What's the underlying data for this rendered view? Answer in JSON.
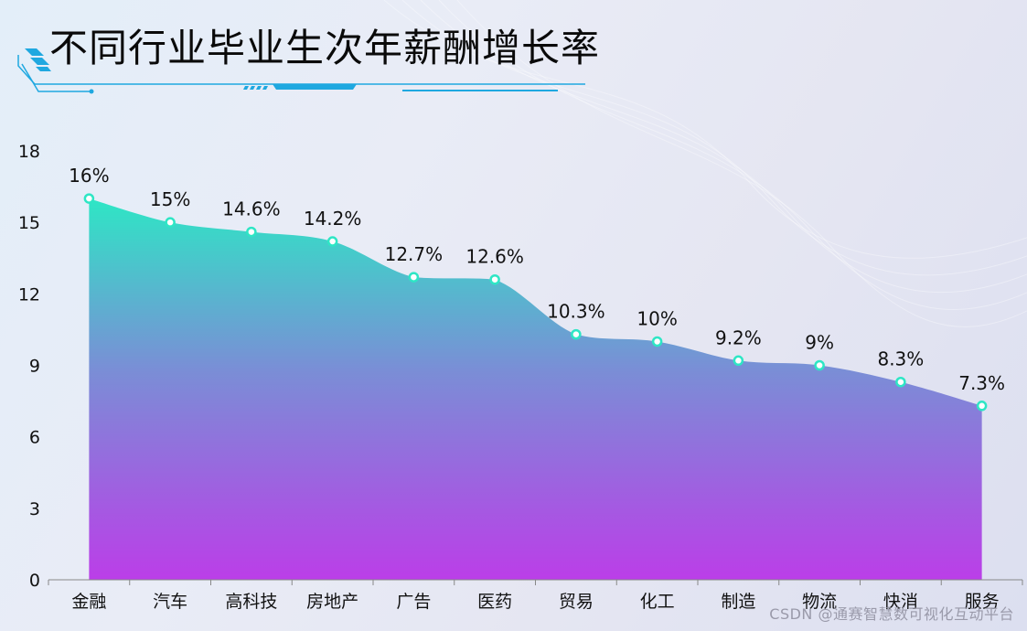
{
  "chart_data": {
    "type": "area",
    "title": "不同行业毕业生次年薪酬增长率",
    "xlabel": "",
    "ylabel": "",
    "categories": [
      "金融",
      "汽车",
      "高科技",
      "房地产",
      "广告",
      "医药",
      "贸易",
      "化工",
      "制造",
      "物流",
      "快消",
      "服务"
    ],
    "values": [
      16,
      15,
      14.6,
      14.2,
      12.7,
      12.6,
      10.3,
      10,
      9.2,
      9,
      8.3,
      7.3
    ],
    "data_labels": [
      "16%",
      "15%",
      "14.6%",
      "14.2%",
      "12.7%",
      "12.6%",
      "10.3%",
      "10%",
      "9.2%",
      "9%",
      "8.3%",
      "7.3%"
    ],
    "yticks": [
      "0",
      "3",
      "6",
      "9",
      "12",
      "15",
      "18"
    ],
    "ylim": [
      0,
      18
    ],
    "grid": false,
    "legend": "none",
    "colors": {
      "gradient_top": "#2ee6c5",
      "gradient_mid": "#7a8ed6",
      "gradient_bottom": "#bb3ee8",
      "marker_stroke": "#2ee6c5",
      "marker_fill": "#ffffff",
      "axis": "#888888",
      "title_accent": "#1fa8e0"
    }
  },
  "watermark": "CSDN @通赛智慧数可视化互动平台"
}
